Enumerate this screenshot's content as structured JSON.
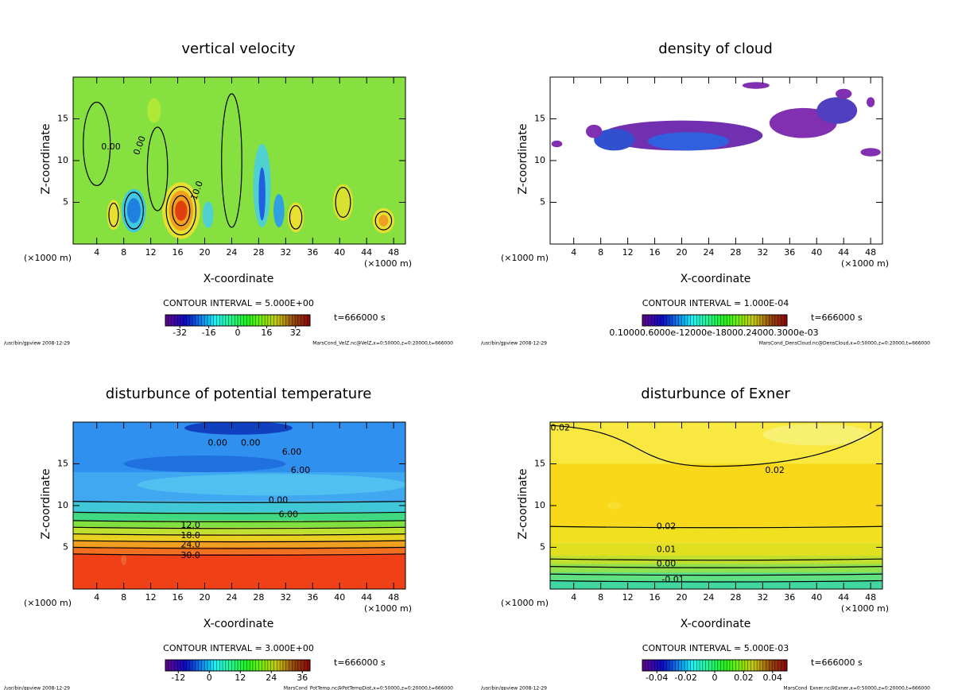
{
  "chart_data": [
    {
      "type": "contour",
      "title": "vertical velocity",
      "x_label": "X-coordinate",
      "y_label": "Z-coordinate",
      "x_unit": "(×1000 m)",
      "xlim": [
        0.5,
        49.75
      ],
      "ylim": [
        0,
        20
      ],
      "xticks": [
        4,
        8,
        12,
        16,
        20,
        24,
        28,
        32,
        36,
        40,
        44,
        48
      ],
      "yticks": [
        5,
        10,
        15
      ],
      "contour_interval": "CONTOUR INTERVAL = 5.000E+00",
      "clim": [
        -40,
        40
      ],
      "cticks": [
        -32,
        -16,
        0,
        16,
        32
      ],
      "time": "t=666000 s",
      "footer_left": "/usr/bin/gpview  2008-12-29",
      "footer_right": "MarsCond_VelZ.nc@VelZ,x=0:50000,z=0:20000,t=666000",
      "contour_labels": [
        "0.00",
        "0.00",
        "10.0"
      ]
    },
    {
      "type": "contour",
      "title": "density of cloud",
      "x_label": "X-coordinate",
      "y_label": "Z-coordinate",
      "x_unit": "(×1000 m)",
      "xlim": [
        0.5,
        49.75
      ],
      "ylim": [
        0,
        20
      ],
      "xticks": [
        4,
        8,
        12,
        16,
        20,
        24,
        28,
        32,
        36,
        40,
        44,
        48
      ],
      "yticks": [
        5,
        10,
        15
      ],
      "contour_interval": "CONTOUR INTERVAL = 1.000E-04",
      "colorbar_text": "0.10000.6000e-12000e-18000.24000.3000e-03",
      "time": "t=666000 s",
      "footer_left": "/usr/bin/gpview  2008-12-29",
      "footer_right": "MarsCond_DensCloud.nc@DensCloud,x=0:50000,z=0:20000,t=666000",
      "contour_labels": []
    },
    {
      "type": "contour",
      "title": "disturbunce of potential temperature",
      "x_label": "X-coordinate",
      "y_label": "Z-coordinate",
      "x_unit": "(×1000 m)",
      "xlim": [
        0.5,
        49.75
      ],
      "ylim": [
        0,
        20
      ],
      "xticks": [
        4,
        8,
        12,
        16,
        20,
        24,
        28,
        32,
        36,
        40,
        44,
        48
      ],
      "yticks": [
        5,
        10,
        15
      ],
      "contour_interval": "CONTOUR INTERVAL = 3.000E+00",
      "clim": [
        -17,
        39
      ],
      "cticks": [
        -12,
        0,
        12,
        24,
        36
      ],
      "time": "t=666000 s",
      "footer_left": "/usr/bin/gpview  2008-12-29",
      "footer_right": "MarsCond_PotTemp.nc@PotTempDist,x=0:50000,z=0:20000,t=666000",
      "contour_labels": [
        "0.00",
        "0.00",
        "6.00",
        "6.00",
        "0.00",
        "6.00",
        "12.0",
        "18.0",
        "24.0",
        "30.0"
      ]
    },
    {
      "type": "contour",
      "title": "disturbunce of Exner",
      "x_label": "X-coordinate",
      "y_label": "Z-coordinate",
      "x_unit": "(×1000 m)",
      "xlim": [
        0.5,
        49.75
      ],
      "ylim": [
        0,
        20
      ],
      "xticks": [
        4,
        8,
        12,
        16,
        20,
        24,
        28,
        32,
        36,
        40,
        44,
        48
      ],
      "yticks": [
        5,
        10,
        15
      ],
      "contour_interval": "CONTOUR INTERVAL = 5.000E-03",
      "clim": [
        -0.05,
        0.05
      ],
      "cticks": [
        -0.04,
        -0.02,
        0,
        0.02,
        0.04
      ],
      "time": "t=666000 s",
      "footer_left": "/usr/bin/gpview  2008-12-29",
      "footer_right": "MarsCond_Exner.nc@Exner,x=0:50000,z=0:20000,t=666000",
      "contour_labels": [
        "0.02",
        "0.02",
        "0.02",
        "0.01",
        "0.00",
        "-0.01"
      ]
    }
  ]
}
